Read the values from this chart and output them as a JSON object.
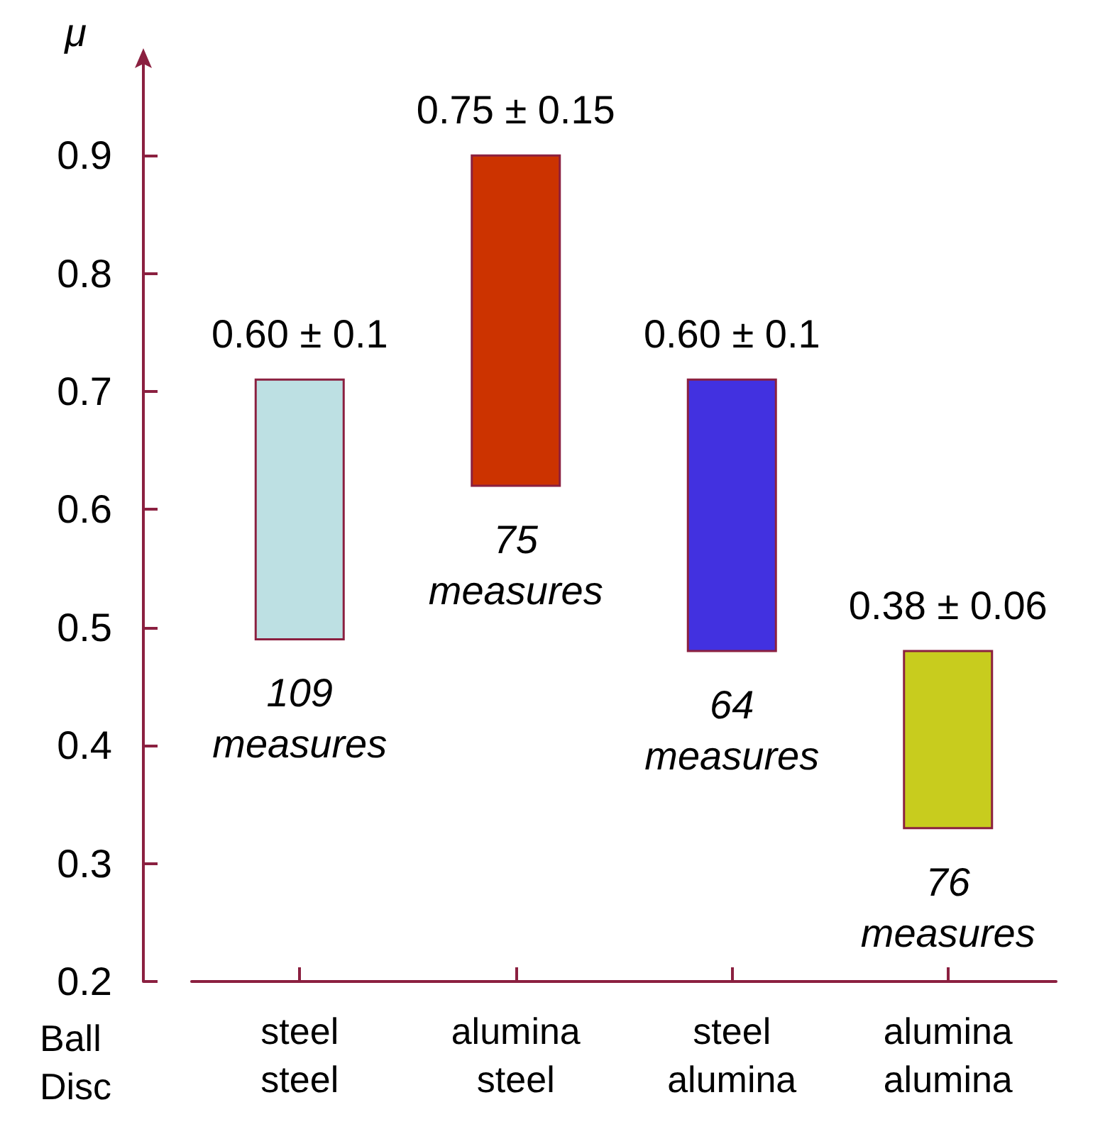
{
  "chart_data": {
    "type": "bar",
    "ylabel": "μ",
    "categories": [
      "steel\nsteel",
      "alumina\nsteel",
      "steel\nalumina",
      "alumina\nalumina"
    ],
    "base": [
      0.49,
      0.62,
      0.48,
      0.33
    ],
    "values": [
      0.22,
      0.28,
      0.23,
      0.15
    ],
    "colors": [
      "#bde0e3",
      "#cc3300",
      "#4231e0",
      "#c8cc1e"
    ],
    "ylim": [
      0.2,
      0.98
    ],
    "yticks": [
      0.2,
      0.3,
      0.4,
      0.5,
      0.6,
      0.7,
      0.8,
      0.9
    ],
    "grid": false,
    "annotations": [
      {
        "text": "0.60 ± 0.1",
        "x": "steel\nsteel",
        "y": 0.71
      },
      {
        "text": "109\nmeasures",
        "x": "steel\nsteel",
        "y": 0.49
      },
      {
        "text": "0.75 ± 0.15",
        "x": "alumina\nsteel",
        "y": 0.9
      },
      {
        "text": "75\nmeasures",
        "x": "alumina\nsteel",
        "y": 0.62
      },
      {
        "text": "0.60 ± 0.1",
        "x": "steel\nalumina",
        "y": 0.71
      },
      {
        "text": "64\nmeasures",
        "x": "steel\nalumina",
        "y": 0.48
      },
      {
        "text": "0.38 ± 0.06",
        "x": "alumina\nalumina",
        "y": 0.48
      },
      {
        "text": "76\nmeasures",
        "x": "alumina\nalumina",
        "y": 0.33
      },
      "Ball\nDisc"
    ]
  }
}
